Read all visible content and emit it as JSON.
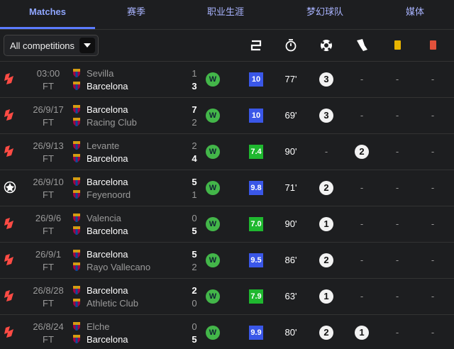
{
  "tabs": [
    "Matches",
    "赛季",
    "职业生涯",
    "梦幻球队",
    "媒体"
  ],
  "filter": "All competitions",
  "matches": [
    {
      "competition": "laliga",
      "date": "03:00",
      "status": "FT",
      "home": "Sevilla",
      "away": "Barcelona",
      "home_score": "1",
      "away_score": "3",
      "focus": "away",
      "result": "W",
      "rating": "10",
      "rating_tier": "high",
      "minutes": "77'",
      "goals": "3",
      "assists": "-",
      "yellow": "-",
      "red": "-"
    },
    {
      "competition": "laliga",
      "date": "26/9/17",
      "status": "FT",
      "home": "Barcelona",
      "away": "Racing Club",
      "home_score": "7",
      "away_score": "2",
      "focus": "home",
      "result": "W",
      "rating": "10",
      "rating_tier": "high",
      "minutes": "69'",
      "goals": "3",
      "assists": "-",
      "yellow": "-",
      "red": "-"
    },
    {
      "competition": "laliga",
      "date": "26/9/13",
      "status": "FT",
      "home": "Levante",
      "away": "Barcelona",
      "home_score": "2",
      "away_score": "4",
      "focus": "away",
      "result": "W",
      "rating": "7.4",
      "rating_tier": "good",
      "minutes": "90'",
      "goals": "-",
      "assists": "2",
      "yellow": "-",
      "red": "-"
    },
    {
      "competition": "ucl",
      "date": "26/9/10",
      "status": "FT",
      "home": "Barcelona",
      "away": "Feyenoord",
      "home_score": "5",
      "away_score": "1",
      "focus": "home",
      "result": "W",
      "rating": "9.8",
      "rating_tier": "high",
      "minutes": "71'",
      "goals": "2",
      "assists": "-",
      "yellow": "-",
      "red": "-"
    },
    {
      "competition": "laliga",
      "date": "26/9/6",
      "status": "FT",
      "home": "Valencia",
      "away": "Barcelona",
      "home_score": "0",
      "away_score": "5",
      "focus": "away",
      "result": "W",
      "rating": "7.0",
      "rating_tier": "good",
      "minutes": "90'",
      "goals": "1",
      "assists": "-",
      "yellow": "-",
      "red": "-"
    },
    {
      "competition": "laliga",
      "date": "26/9/1",
      "status": "FT",
      "home": "Barcelona",
      "away": "Rayo Vallecano",
      "home_score": "5",
      "away_score": "2",
      "focus": "home",
      "result": "W",
      "rating": "9.5",
      "rating_tier": "high",
      "minutes": "86'",
      "goals": "2",
      "assists": "-",
      "yellow": "-",
      "red": "-"
    },
    {
      "competition": "laliga",
      "date": "26/8/28",
      "status": "FT",
      "home": "Barcelona",
      "away": "Athletic Club",
      "home_score": "2",
      "away_score": "0",
      "focus": "home",
      "result": "W",
      "rating": "7.9",
      "rating_tier": "good",
      "minutes": "63'",
      "goals": "1",
      "assists": "-",
      "yellow": "-",
      "red": "-"
    },
    {
      "competition": "laliga",
      "date": "26/8/24",
      "status": "FT",
      "home": "Elche",
      "away": "Barcelona",
      "home_score": "0",
      "away_score": "5",
      "focus": "away",
      "result": "W",
      "rating": "9.9",
      "rating_tier": "high",
      "minutes": "80'",
      "goals": "2",
      "assists": "1",
      "yellow": "-",
      "red": "-"
    }
  ]
}
